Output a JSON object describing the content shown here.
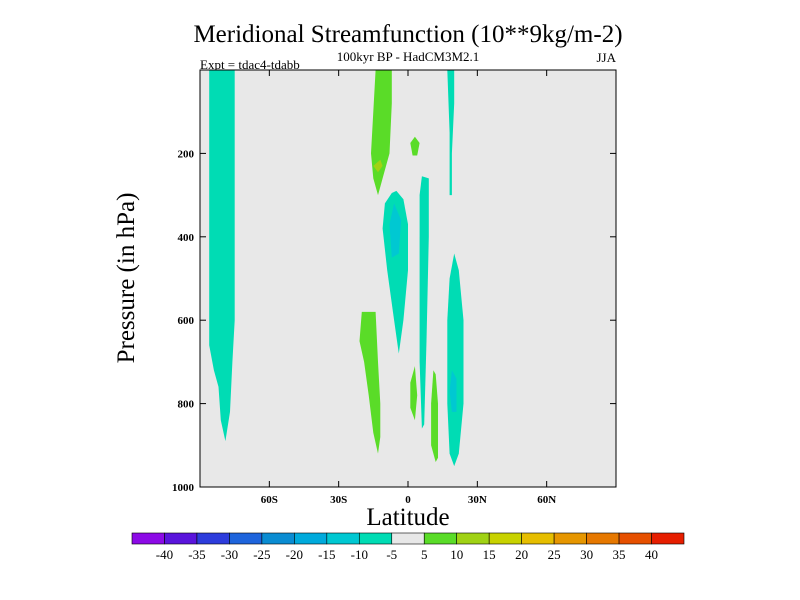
{
  "chart_data": {
    "type": "filled-contour",
    "title": "Meridional Streamfunction (10**9kg/m-2)",
    "subtitle": "100kyr BP - HadCM3M2.1",
    "left_label": "Expt = tdac4-tdabb",
    "right_label": "JJA",
    "xlabel": "Latitude",
    "ylabel": "Pressure (in hPa)",
    "xlim": [
      -90,
      90
    ],
    "ylim": [
      1000,
      0
    ],
    "x_ticks": [
      {
        "value": -60,
        "label": "60S"
      },
      {
        "value": -30,
        "label": "30S"
      },
      {
        "value": 0,
        "label": "0"
      },
      {
        "value": 30,
        "label": "30N"
      },
      {
        "value": 60,
        "label": "60N"
      }
    ],
    "y_ticks": [
      {
        "value": 200,
        "label": "200"
      },
      {
        "value": 400,
        "label": "400"
      },
      {
        "value": 600,
        "label": "600"
      },
      {
        "value": 800,
        "label": "800"
      },
      {
        "value": 1000,
        "label": "1000"
      }
    ],
    "background_color": "#e8e8e8",
    "colorbar": {
      "levels": [
        -40,
        -35,
        -30,
        -25,
        -20,
        -15,
        -10,
        -5,
        5,
        10,
        15,
        20,
        25,
        30,
        35,
        40
      ],
      "colors": [
        "#8c0ae6",
        "#5a14dc",
        "#2d3cdc",
        "#1e64dc",
        "#0a8cd2",
        "#00aadc",
        "#00c8d2",
        "#00dcb4",
        "#e8e8e8",
        "#5adc28",
        "#a0d214",
        "#c8d200",
        "#e6be00",
        "#e69600",
        "#e67800",
        "#e65000",
        "#e61e00"
      ]
    },
    "regions": [
      {
        "name": "sh-high-lat-negative",
        "value": -7,
        "polygon": [
          [
            -86,
            0
          ],
          [
            -75,
            0
          ],
          [
            -75,
            600
          ],
          [
            -76,
            700
          ],
          [
            -77,
            820
          ],
          [
            -79,
            890
          ],
          [
            -81,
            840
          ],
          [
            -82,
            760
          ],
          [
            -84,
            720
          ],
          [
            -86,
            660
          ],
          [
            -86,
            300
          ]
        ]
      },
      {
        "name": "upper-tropical-positive",
        "value": 7,
        "polygon": [
          [
            -14,
            0
          ],
          [
            -7,
            0
          ],
          [
            -7,
            80
          ],
          [
            -8,
            200
          ],
          [
            -11,
            260
          ],
          [
            -13,
            300
          ],
          [
            -15,
            260
          ],
          [
            -16,
            200
          ],
          [
            -15,
            100
          ]
        ]
      },
      {
        "name": "upper-tropical-positive-core",
        "value": 12,
        "polygon": [
          [
            -15,
            230
          ],
          [
            -12,
            215
          ],
          [
            -11,
            230
          ],
          [
            -13,
            245
          ]
        ]
      },
      {
        "name": "upper-near-equator-positive",
        "value": 7,
        "polygon": [
          [
            1,
            175
          ],
          [
            3,
            160
          ],
          [
            5,
            175
          ],
          [
            4,
            205
          ],
          [
            2,
            205
          ]
        ]
      },
      {
        "name": "tropical-upper-negative",
        "value": -7,
        "polygon": [
          [
            -5,
            290
          ],
          [
            -2,
            310
          ],
          [
            0,
            370
          ],
          [
            0,
            480
          ],
          [
            -2,
            600
          ],
          [
            -4,
            680
          ],
          [
            -6,
            600
          ],
          [
            -9,
            480
          ],
          [
            -11,
            380
          ],
          [
            -10,
            320
          ],
          [
            -7,
            295
          ]
        ]
      },
      {
        "name": "tropical-upper-negative-core",
        "value": -12,
        "polygon": [
          [
            -6,
            320
          ],
          [
            -3,
            360
          ],
          [
            -4,
            440
          ],
          [
            -7,
            450
          ],
          [
            -8,
            370
          ]
        ]
      },
      {
        "name": "equatorial-narrow-negative",
        "value": -7,
        "polygon": [
          [
            6,
            255
          ],
          [
            9,
            260
          ],
          [
            9,
            400
          ],
          [
            8,
            650
          ],
          [
            7,
            850
          ],
          [
            6,
            860
          ],
          [
            5,
            700
          ],
          [
            5,
            450
          ],
          [
            5,
            300
          ]
        ]
      },
      {
        "name": "northern-upper-negative",
        "value": -7,
        "polygon": [
          [
            17,
            0
          ],
          [
            20,
            0
          ],
          [
            20,
            80
          ],
          [
            19,
            200
          ],
          [
            19,
            300
          ],
          [
            18,
            300
          ],
          [
            18,
            150
          ]
        ]
      },
      {
        "name": "lower-tropical-positive",
        "value": 7,
        "polygon": [
          [
            -20,
            580
          ],
          [
            -14,
            580
          ],
          [
            -13,
            700
          ],
          [
            -12,
            800
          ],
          [
            -12,
            880
          ],
          [
            -13,
            920
          ],
          [
            -15,
            870
          ],
          [
            -17,
            780
          ],
          [
            -19,
            700
          ],
          [
            -21,
            650
          ]
        ]
      },
      {
        "name": "lower-near-equator-positive",
        "value": 7,
        "polygon": [
          [
            1,
            750
          ],
          [
            3,
            710
          ],
          [
            4,
            780
          ],
          [
            3,
            840
          ],
          [
            1,
            810
          ]
        ]
      },
      {
        "name": "lower-north-positive",
        "value": 7,
        "polygon": [
          [
            11,
            720
          ],
          [
            12,
            730
          ],
          [
            13,
            800
          ],
          [
            13,
            930
          ],
          [
            12,
            940
          ],
          [
            10,
            900
          ],
          [
            10,
            800
          ]
        ]
      },
      {
        "name": "lower-northern-negative",
        "value": -7,
        "polygon": [
          [
            20,
            440
          ],
          [
            22,
            480
          ],
          [
            24,
            600
          ],
          [
            24,
            800
          ],
          [
            22,
            920
          ],
          [
            20,
            950
          ],
          [
            18,
            920
          ],
          [
            17,
            800
          ],
          [
            17,
            600
          ],
          [
            18,
            500
          ]
        ]
      },
      {
        "name": "lower-northern-negative-core",
        "value": -12,
        "polygon": [
          [
            19,
            720
          ],
          [
            21,
            740
          ],
          [
            21,
            820
          ],
          [
            19,
            820
          ],
          [
            18,
            770
          ]
        ]
      }
    ]
  }
}
